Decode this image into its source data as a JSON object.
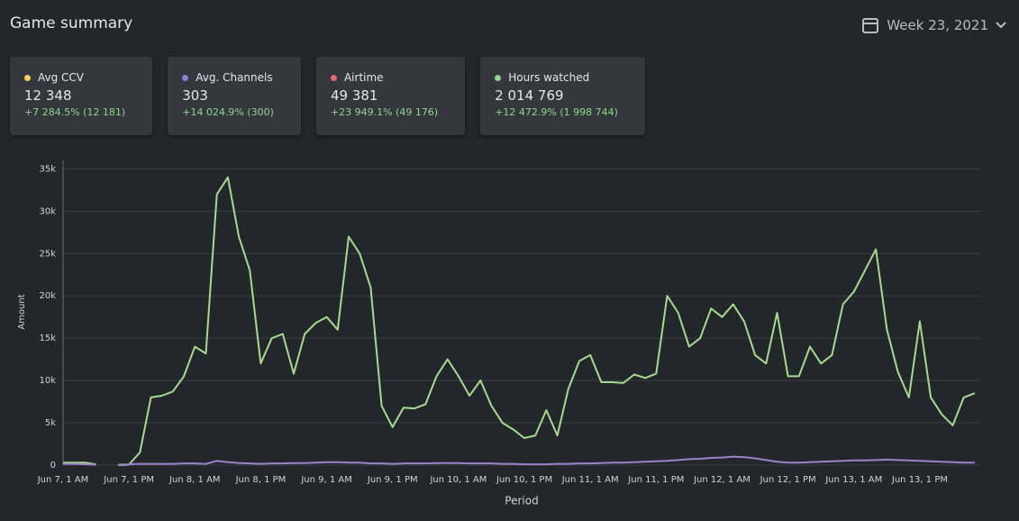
{
  "header": {
    "title": "Game summary",
    "period": "Week 23, 2021"
  },
  "cards": [
    {
      "label": "Avg CCV",
      "value": "12 348",
      "change": "+7 284.5% (12 181)",
      "color": "#f5d05a"
    },
    {
      "label": "Avg. Channels",
      "value": "303",
      "change": "+14 024.9% (300)",
      "color": "#8f7fd0"
    },
    {
      "label": "Airtime",
      "value": "49 381",
      "change": "+23 949.1% (49 176)",
      "color": "#e86a6a"
    },
    {
      "label": "Hours watched",
      "value": "2 014 769",
      "change": "+12 472.9% (1 998 744)",
      "color": "#8fd48b"
    }
  ],
  "chart_data": {
    "type": "line",
    "x_label": "Period",
    "y_label": "Amount",
    "categories": [
      "Jun 7, 1 AM",
      null,
      null,
      null,
      null,
      null,
      "Jun 7, 1 PM",
      null,
      null,
      null,
      null,
      null,
      "Jun 8, 1 AM",
      null,
      null,
      null,
      null,
      null,
      "Jun 8, 1 PM",
      null,
      null,
      null,
      null,
      null,
      "Jun 9, 1 AM",
      null,
      null,
      null,
      null,
      null,
      "Jun 9, 1 PM",
      null,
      null,
      null,
      null,
      null,
      "Jun 10, 1 AM",
      null,
      null,
      null,
      null,
      null,
      "Jun 10, 1 PM",
      null,
      null,
      null,
      null,
      null,
      "Jun 11, 1 AM",
      null,
      null,
      null,
      null,
      null,
      "Jun 11, 1 PM",
      null,
      null,
      null,
      null,
      null,
      "Jun 12, 1 AM",
      null,
      null,
      null,
      null,
      null,
      "Jun 12, 1 PM",
      null,
      null,
      null,
      null,
      null,
      "Jun 13, 1 AM",
      null,
      null,
      null,
      null,
      null,
      "Jun 13, 1 PM",
      null,
      null,
      null,
      null,
      null
    ],
    "series": [
      {
        "name": "Hours watched",
        "color": "#a6db8f",
        "values": [
          300,
          300,
          300,
          100,
          null,
          0,
          50,
          1500,
          8000,
          8200,
          8700,
          10500,
          14000,
          13200,
          32000,
          34000,
          27000,
          23000,
          12000,
          15000,
          15500,
          10800,
          15500,
          16800,
          17500,
          16000,
          27000,
          25000,
          21000,
          7000,
          4500,
          6800,
          6700,
          7200,
          10500,
          12500,
          10500,
          8200,
          10000,
          7000,
          5000,
          4200,
          3200,
          3500,
          6500,
          3500,
          9000,
          12300,
          13000,
          9800,
          9800,
          9700,
          10700,
          10300,
          10800,
          20000,
          18000,
          14000,
          15000,
          18500,
          17500,
          19000,
          17000,
          13000,
          12000,
          18000,
          10500,
          10500,
          14000,
          12000,
          13000,
          19000,
          20500,
          23000,
          25500,
          16000,
          11000,
          8000,
          17000,
          8000,
          6000,
          4700,
          8000,
          8500
        ]
      },
      {
        "name": "Avg. Channels",
        "color": "#9b82c9",
        "values": [
          150,
          150,
          100,
          50,
          null,
          50,
          100,
          150,
          150,
          150,
          150,
          200,
          200,
          150,
          500,
          350,
          250,
          200,
          150,
          200,
          200,
          250,
          250,
          300,
          350,
          350,
          300,
          300,
          200,
          200,
          150,
          200,
          200,
          200,
          250,
          250,
          250,
          200,
          200,
          200,
          150,
          150,
          100,
          100,
          100,
          150,
          150,
          200,
          200,
          250,
          300,
          300,
          350,
          400,
          450,
          500,
          600,
          700,
          750,
          850,
          900,
          1000,
          950,
          800,
          600,
          400,
          300,
          300,
          350,
          400,
          450,
          500,
          550,
          550,
          600,
          650,
          600,
          550,
          500,
          450,
          400,
          350,
          300,
          300
        ]
      }
    ],
    "ylim": [
      0,
      36000
    ],
    "yticks": [
      0,
      {
        "value": 5000,
        "label": "5k"
      },
      {
        "value": 10000,
        "label": "10k"
      },
      {
        "value": 15000,
        "label": "15k"
      },
      {
        "value": 20000,
        "label": "20k"
      },
      {
        "value": 25000,
        "label": "25k"
      },
      {
        "value": 30000,
        "label": "30k"
      },
      {
        "value": 35000,
        "label": "35k"
      }
    ],
    "grid": true
  }
}
